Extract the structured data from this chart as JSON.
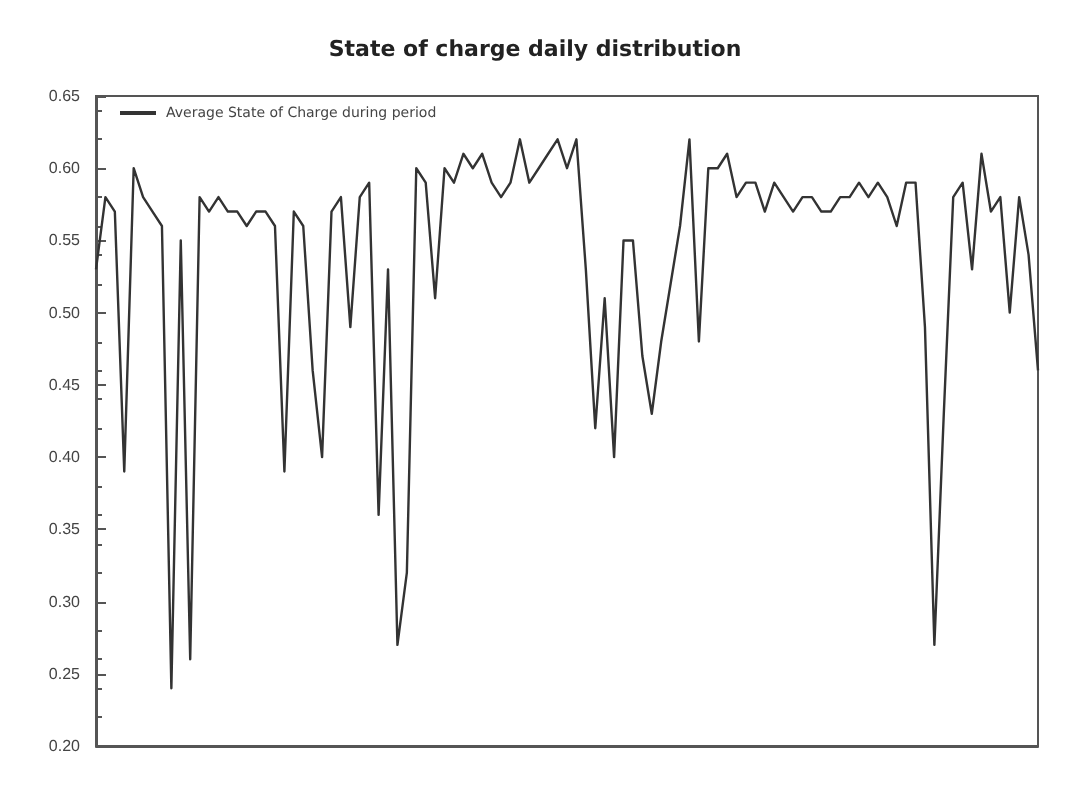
{
  "chart_data": {
    "type": "line",
    "title": "State of charge daily distribution",
    "categories": [
      null,
      null,
      null,
      null,
      null,
      null,
      null,
      null,
      null,
      null,
      null,
      null,
      null,
      null,
      null,
      null,
      null,
      null,
      null,
      null,
      null,
      null,
      null,
      null,
      null,
      null,
      null,
      null,
      null,
      null,
      null,
      null,
      null,
      null,
      null,
      null,
      null,
      null,
      null,
      null,
      null,
      null,
      null,
      null,
      null,
      null,
      null,
      null,
      null,
      null,
      null,
      null,
      null,
      null,
      null,
      null,
      null,
      null,
      null,
      null,
      null,
      null,
      null,
      null,
      null,
      null,
      null,
      null,
      null,
      null,
      null,
      null,
      null,
      null,
      null,
      null,
      null,
      null,
      null,
      null,
      null,
      null,
      null,
      null,
      null,
      null,
      null,
      null,
      null,
      null,
      null,
      null,
      null,
      null,
      null,
      null,
      null,
      null,
      null,
      null,
      null
    ],
    "series": [
      {
        "name": "Average State of Charge during period",
        "color": "#333333",
        "values": [
          0.53,
          0.58,
          0.57,
          0.39,
          0.6,
          0.58,
          0.57,
          0.56,
          0.24,
          0.55,
          0.26,
          0.58,
          0.57,
          0.58,
          0.57,
          0.57,
          0.56,
          0.57,
          0.57,
          0.56,
          0.39,
          0.57,
          0.56,
          0.46,
          0.4,
          0.57,
          0.58,
          0.49,
          0.58,
          0.59,
          0.36,
          0.53,
          0.27,
          0.32,
          0.6,
          0.59,
          0.51,
          0.6,
          0.59,
          0.61,
          0.6,
          0.61,
          0.59,
          0.58,
          0.59,
          0.62,
          0.59,
          0.6,
          0.61,
          0.62,
          0.6,
          0.62,
          0.53,
          0.42,
          0.51,
          0.4,
          0.55,
          0.55,
          0.47,
          0.43,
          0.48,
          0.52,
          0.56,
          0.62,
          0.48,
          0.6,
          0.6,
          0.61,
          0.58,
          0.59,
          0.59,
          0.57,
          0.59,
          0.58,
          0.57,
          0.58,
          0.58,
          0.57,
          0.57,
          0.58,
          0.58,
          0.59,
          0.58,
          0.59,
          0.58,
          0.56,
          0.59,
          0.59,
          0.49,
          0.27,
          0.43,
          0.58,
          0.59,
          0.53,
          0.61,
          0.57,
          0.58,
          0.5,
          0.58,
          0.54,
          0.46
        ]
      }
    ],
    "ylim": [
      0.2,
      0.65
    ],
    "yticks": [
      {
        "value": 0.2,
        "label": "0.20"
      },
      0.25,
      {
        "value": 0.3,
        "label": "0.30"
      },
      0.35,
      {
        "value": 0.4,
        "label": "0.40"
      },
      0.45,
      {
        "value": 0.5,
        "label": "0.50"
      },
      0.55,
      {
        "value": 0.6,
        "label": "0.60"
      },
      0.65
    ],
    "grid": false,
    "legend": "top left",
    "tick_labels": "y",
    "line_style": "solid"
  }
}
